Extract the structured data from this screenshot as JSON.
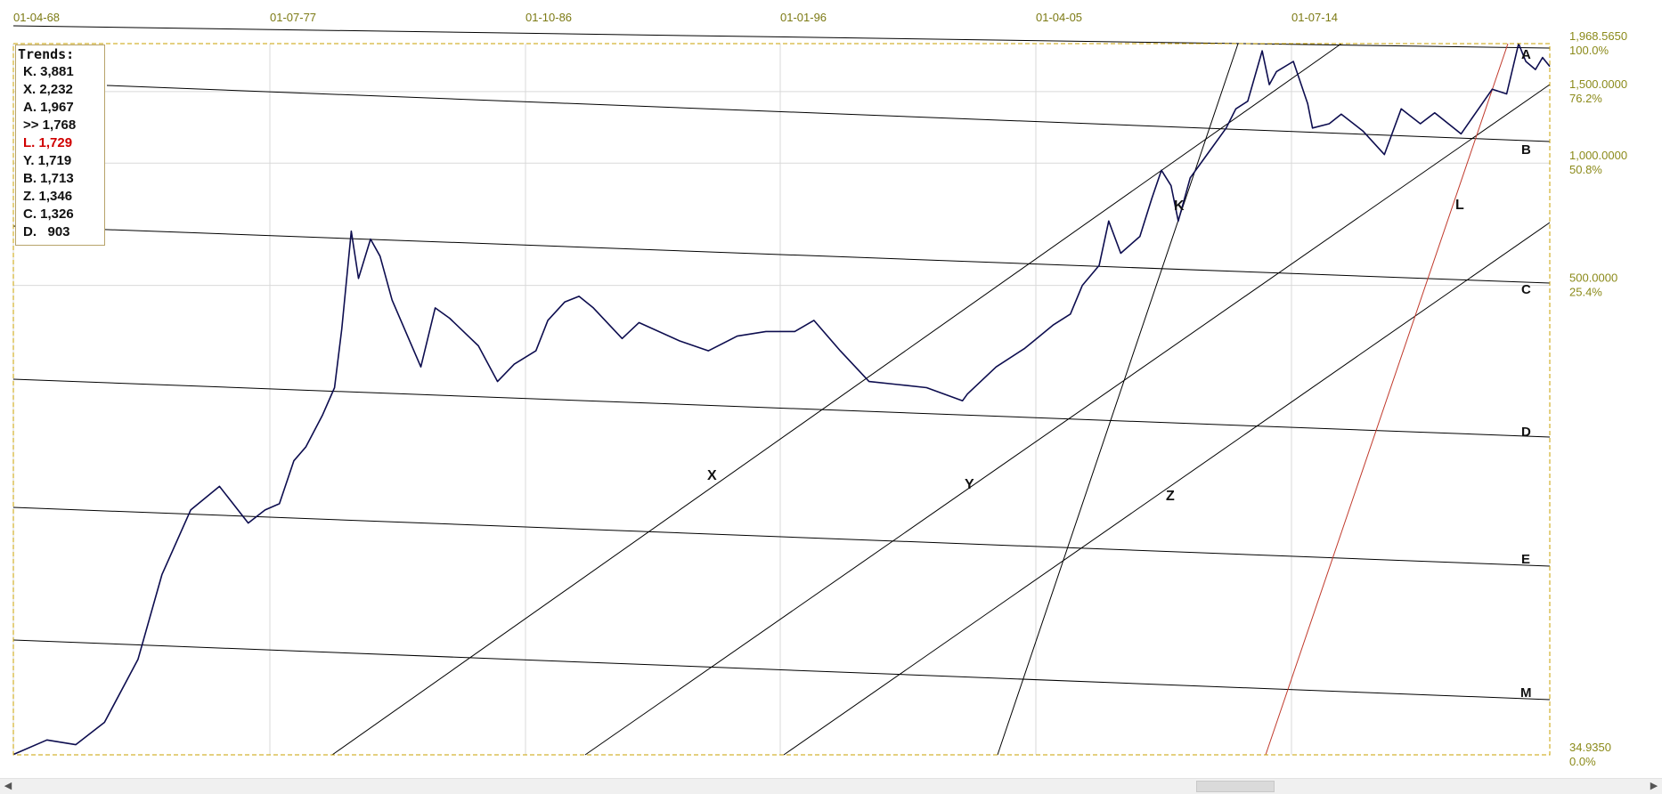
{
  "chart_data": {
    "type": "line",
    "scale": "log",
    "x_ticks": [
      "01-04-68",
      "01-07-77",
      "01-10-86",
      "01-01-96",
      "01-04-05",
      "01-07-14"
    ],
    "y_labels": [
      {
        "value": "1,968.5650",
        "pct": "100.0%"
      },
      {
        "value": "1,500.0000",
        "pct": "76.2%"
      },
      {
        "value": "1,000.0000",
        "pct": "50.8%"
      },
      {
        "value": "500.0000",
        "pct": "25.4%"
      },
      {
        "value": "34.9350",
        "pct": "0.0%"
      }
    ],
    "ylim": [
      34.935,
      1968.565
    ],
    "grid": true,
    "legend_position": "top-left",
    "series": [
      {
        "color": "#0d0d4f",
        "points": [
          [
            "1968-04",
            35
          ],
          [
            "1969-06",
            38
          ],
          [
            "1970-06",
            37
          ],
          [
            "1971-06",
            42
          ],
          [
            "1972-08",
            60
          ],
          [
            "1973-06",
            97
          ],
          [
            "1974-06",
            140
          ],
          [
            "1975-06",
            160
          ],
          [
            "1976-06",
            130
          ],
          [
            "1977-01",
            140
          ],
          [
            "1977-07",
            145
          ],
          [
            "1978-01",
            185
          ],
          [
            "1978-06",
            200
          ],
          [
            "1979-01",
            240
          ],
          [
            "1979-06",
            280
          ],
          [
            "1979-09",
            390
          ],
          [
            "1980-01",
            680
          ],
          [
            "1980-04",
            520
          ],
          [
            "1980-09",
            650
          ],
          [
            "1981-01",
            590
          ],
          [
            "1981-06",
            460
          ],
          [
            "1982-06",
            315
          ],
          [
            "1982-12",
            440
          ],
          [
            "1983-06",
            415
          ],
          [
            "1984-06",
            355
          ],
          [
            "1985-02",
            290
          ],
          [
            "1985-09",
            320
          ],
          [
            "1986-06",
            345
          ],
          [
            "1986-11",
            410
          ],
          [
            "1987-06",
            455
          ],
          [
            "1987-12",
            470
          ],
          [
            "1988-06",
            440
          ],
          [
            "1989-06",
            370
          ],
          [
            "1990-01",
            405
          ],
          [
            "1991-06",
            365
          ],
          [
            "1992-06",
            345
          ],
          [
            "1993-06",
            375
          ],
          [
            "1994-06",
            385
          ],
          [
            "1995-06",
            385
          ],
          [
            "1996-02",
            410
          ],
          [
            "1997-01",
            345
          ],
          [
            "1998-01",
            290
          ],
          [
            "1999-01",
            285
          ],
          [
            "2000-01",
            280
          ],
          [
            "2001-04",
            260
          ],
          [
            "2001-06",
            270
          ],
          [
            "2002-06",
            315
          ],
          [
            "2003-06",
            350
          ],
          [
            "2004-06",
            400
          ],
          [
            "2005-01",
            425
          ],
          [
            "2005-06",
            500
          ],
          [
            "2006-01",
            560
          ],
          [
            "2006-05",
            720
          ],
          [
            "2006-10",
            600
          ],
          [
            "2007-06",
            660
          ],
          [
            "2007-11",
            820
          ],
          [
            "2008-03",
            960
          ],
          [
            "2008-07",
            880
          ],
          [
            "2008-10",
            720
          ],
          [
            "2009-03",
            920
          ],
          [
            "2009-10",
            1050
          ],
          [
            "2010-06",
            1220
          ],
          [
            "2010-10",
            1360
          ],
          [
            "2011-03",
            1420
          ],
          [
            "2011-09",
            1890
          ],
          [
            "2011-12",
            1560
          ],
          [
            "2012-03",
            1680
          ],
          [
            "2012-10",
            1780
          ],
          [
            "2013-04",
            1400
          ],
          [
            "2013-06",
            1220
          ],
          [
            "2014-01",
            1250
          ],
          [
            "2014-06",
            1320
          ],
          [
            "2015-03",
            1200
          ],
          [
            "2015-12",
            1050
          ],
          [
            "2016-07",
            1360
          ],
          [
            "2017-03",
            1250
          ],
          [
            "2017-09",
            1330
          ],
          [
            "2018-08",
            1180
          ],
          [
            "2019-09",
            1520
          ],
          [
            "2020-03",
            1480
          ],
          [
            "2020-08",
            1968
          ],
          [
            "2020-11",
            1780
          ],
          [
            "2021-03",
            1700
          ],
          [
            "2021-06",
            1820
          ],
          [
            "2021-09",
            1730
          ]
        ]
      }
    ],
    "trends_title": "Trends:",
    "trends": [
      {
        "key": "K.",
        "value": "3,881"
      },
      {
        "key": "X.",
        "value": "2,232"
      },
      {
        "key": "A.",
        "value": "1,967"
      },
      {
        "key": ">>",
        "value": "1,768"
      },
      {
        "key": "L.",
        "value": "1,729",
        "highlight": true
      },
      {
        "key": "Y.",
        "value": "1,719"
      },
      {
        "key": "B.",
        "value": "1,713"
      },
      {
        "key": "Z.",
        "value": "1,346"
      },
      {
        "key": "C.",
        "value": "1,326"
      },
      {
        "key": "D.",
        "value": "  903"
      }
    ],
    "line_labels": {
      "horizontal": [
        "A",
        "B",
        "C",
        "D",
        "E",
        "M"
      ],
      "diagonal": [
        "X",
        "Y",
        "Z",
        "K",
        "L"
      ]
    },
    "colors": {
      "price_line": "#0d0d4f",
      "trend_line": "#000000",
      "highlight_line": "#c0392b",
      "axis_text": "#8b8a1a",
      "frame": "#c8a200",
      "grid": "#d9d9d9"
    }
  }
}
